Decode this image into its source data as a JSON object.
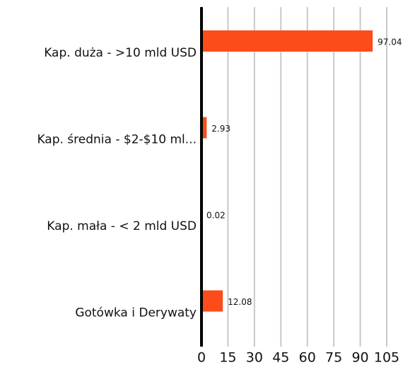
{
  "chart_data": {
    "type": "bar",
    "orientation": "horizontal",
    "categories": [
      "Kap. duża - >10 mld USD",
      "Kap. średnia - $2-$10 ml...",
      "Kap. mała - < 2 mld USD",
      "Gotówka i Derywaty"
    ],
    "values": [
      97.04,
      2.93,
      0.02,
      12.08
    ],
    "color": "#fc4c1a",
    "xlim": [
      0,
      105
    ],
    "xticks": [
      0,
      15,
      30,
      45,
      60,
      75,
      90,
      105
    ],
    "grid": true
  }
}
